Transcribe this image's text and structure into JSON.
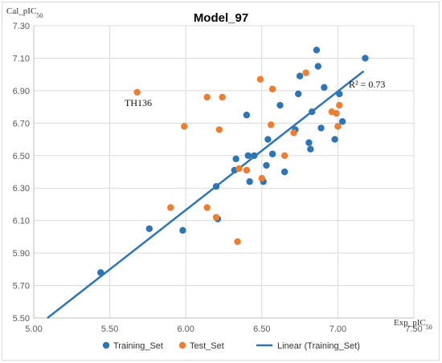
{
  "chart_data": {
    "type": "scatter",
    "title": "Model_97",
    "xlabel": "Exp_pIC50",
    "ylabel": "Cal_pIC50",
    "xlim": [
      5.0,
      7.5
    ],
    "ylim": [
      5.5,
      7.3
    ],
    "xticks": [
      "5.00",
      "5.50",
      "6.00",
      "6.50",
      "7.00",
      "7.50"
    ],
    "yticks": [
      "5.50",
      "5.70",
      "5.90",
      "6.10",
      "6.30",
      "6.50",
      "6.70",
      "6.90",
      "7.10",
      "7.30"
    ],
    "grid": true,
    "legend_position": "bottom",
    "series": [
      {
        "name": "Training_Set",
        "color": "#2E75B6",
        "points": [
          [
            5.44,
            5.78
          ],
          [
            5.76,
            6.05
          ],
          [
            5.98,
            6.04
          ],
          [
            6.2,
            6.31
          ],
          [
            6.21,
            6.11
          ],
          [
            6.32,
            6.41
          ],
          [
            6.33,
            6.48
          ],
          [
            6.4,
            6.75
          ],
          [
            6.41,
            6.5
          ],
          [
            6.42,
            6.34
          ],
          [
            6.45,
            6.5
          ],
          [
            6.51,
            6.34
          ],
          [
            6.53,
            6.44
          ],
          [
            6.54,
            6.6
          ],
          [
            6.57,
            6.51
          ],
          [
            6.62,
            6.81
          ],
          [
            6.65,
            6.4
          ],
          [
            6.72,
            6.66
          ],
          [
            6.74,
            6.88
          ],
          [
            6.75,
            6.99
          ],
          [
            6.81,
            6.58
          ],
          [
            6.82,
            6.54
          ],
          [
            6.83,
            6.77
          ],
          [
            6.86,
            7.15
          ],
          [
            6.87,
            7.05
          ],
          [
            6.89,
            6.67
          ],
          [
            6.91,
            6.92
          ],
          [
            6.98,
            6.6
          ],
          [
            7.01,
            6.88
          ],
          [
            7.03,
            6.71
          ],
          [
            7.18,
            7.1
          ]
        ]
      },
      {
        "name": "Test_Set",
        "color": "#ED7D31",
        "points": [
          [
            5.68,
            6.89
          ],
          [
            5.9,
            6.18
          ],
          [
            5.99,
            6.68
          ],
          [
            6.14,
            6.86
          ],
          [
            6.14,
            6.18
          ],
          [
            6.2,
            6.12
          ],
          [
            6.22,
            6.66
          ],
          [
            6.24,
            6.86
          ],
          [
            6.34,
            5.97
          ],
          [
            6.35,
            6.42
          ],
          [
            6.4,
            6.41
          ],
          [
            6.49,
            6.97
          ],
          [
            6.5,
            6.36
          ],
          [
            6.56,
            6.69
          ],
          [
            6.57,
            6.91
          ],
          [
            6.65,
            6.5
          ],
          [
            6.71,
            6.64
          ],
          [
            6.79,
            7.01
          ],
          [
            6.96,
            6.77
          ],
          [
            6.99,
            6.76
          ],
          [
            7.0,
            6.68
          ],
          [
            7.01,
            6.81
          ]
        ]
      },
      {
        "name": "Linear (Training_Set)",
        "color": "#2E75B6",
        "type": "line",
        "x": [
          5.09,
          7.17
        ],
        "y": [
          5.5,
          7.02
        ]
      }
    ],
    "annotations": {
      "r2": "R² = 0.73",
      "outlier_label": "TH136"
    }
  }
}
